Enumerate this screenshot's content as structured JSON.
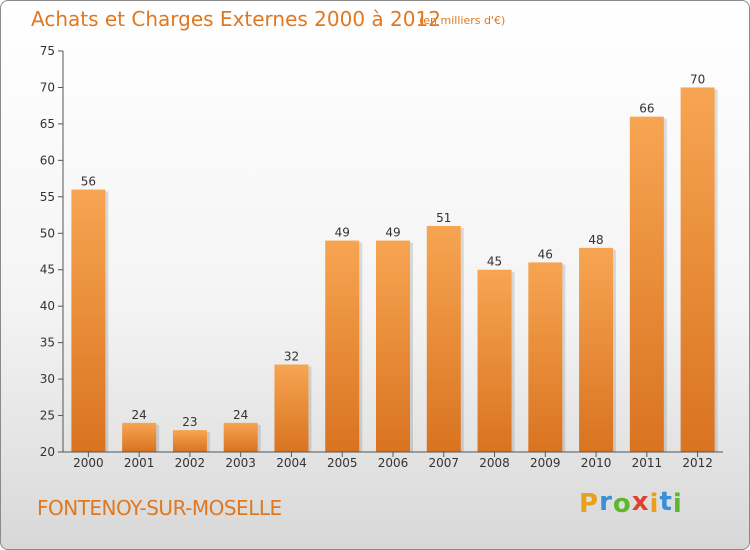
{
  "chart_data": {
    "type": "bar",
    "title": "Achats et Charges Externes 2000 à 2012",
    "subtitle": "(en milliers d'€)",
    "categories": [
      "2000",
      "2001",
      "2002",
      "2003",
      "2004",
      "2005",
      "2006",
      "2007",
      "2008",
      "2009",
      "2010",
      "2011",
      "2012"
    ],
    "values": [
      56,
      24,
      23,
      24,
      32,
      49,
      49,
      51,
      45,
      46,
      48,
      66,
      70
    ],
    "ylim": [
      20,
      75
    ],
    "yticks": [
      20,
      25,
      30,
      35,
      40,
      45,
      50,
      55,
      60,
      65,
      70,
      75
    ],
    "grid": false,
    "bar_color": "#f0963c",
    "bar_color_top": "#f7a552",
    "bar_color_bottom": "#d97320"
  },
  "commune": "FONTENOY-SUR-MOSELLE",
  "brand": {
    "letters": [
      "P",
      "r",
      "o",
      "x",
      "i",
      "t",
      "i"
    ],
    "colors": [
      "#e8a020",
      "#3a8fd8",
      "#5cb82e",
      "#e04030",
      "#e8a020",
      "#3a8fd8",
      "#5cb82e"
    ]
  },
  "colors": {
    "accent": "#e07820",
    "axis": "#555555"
  }
}
